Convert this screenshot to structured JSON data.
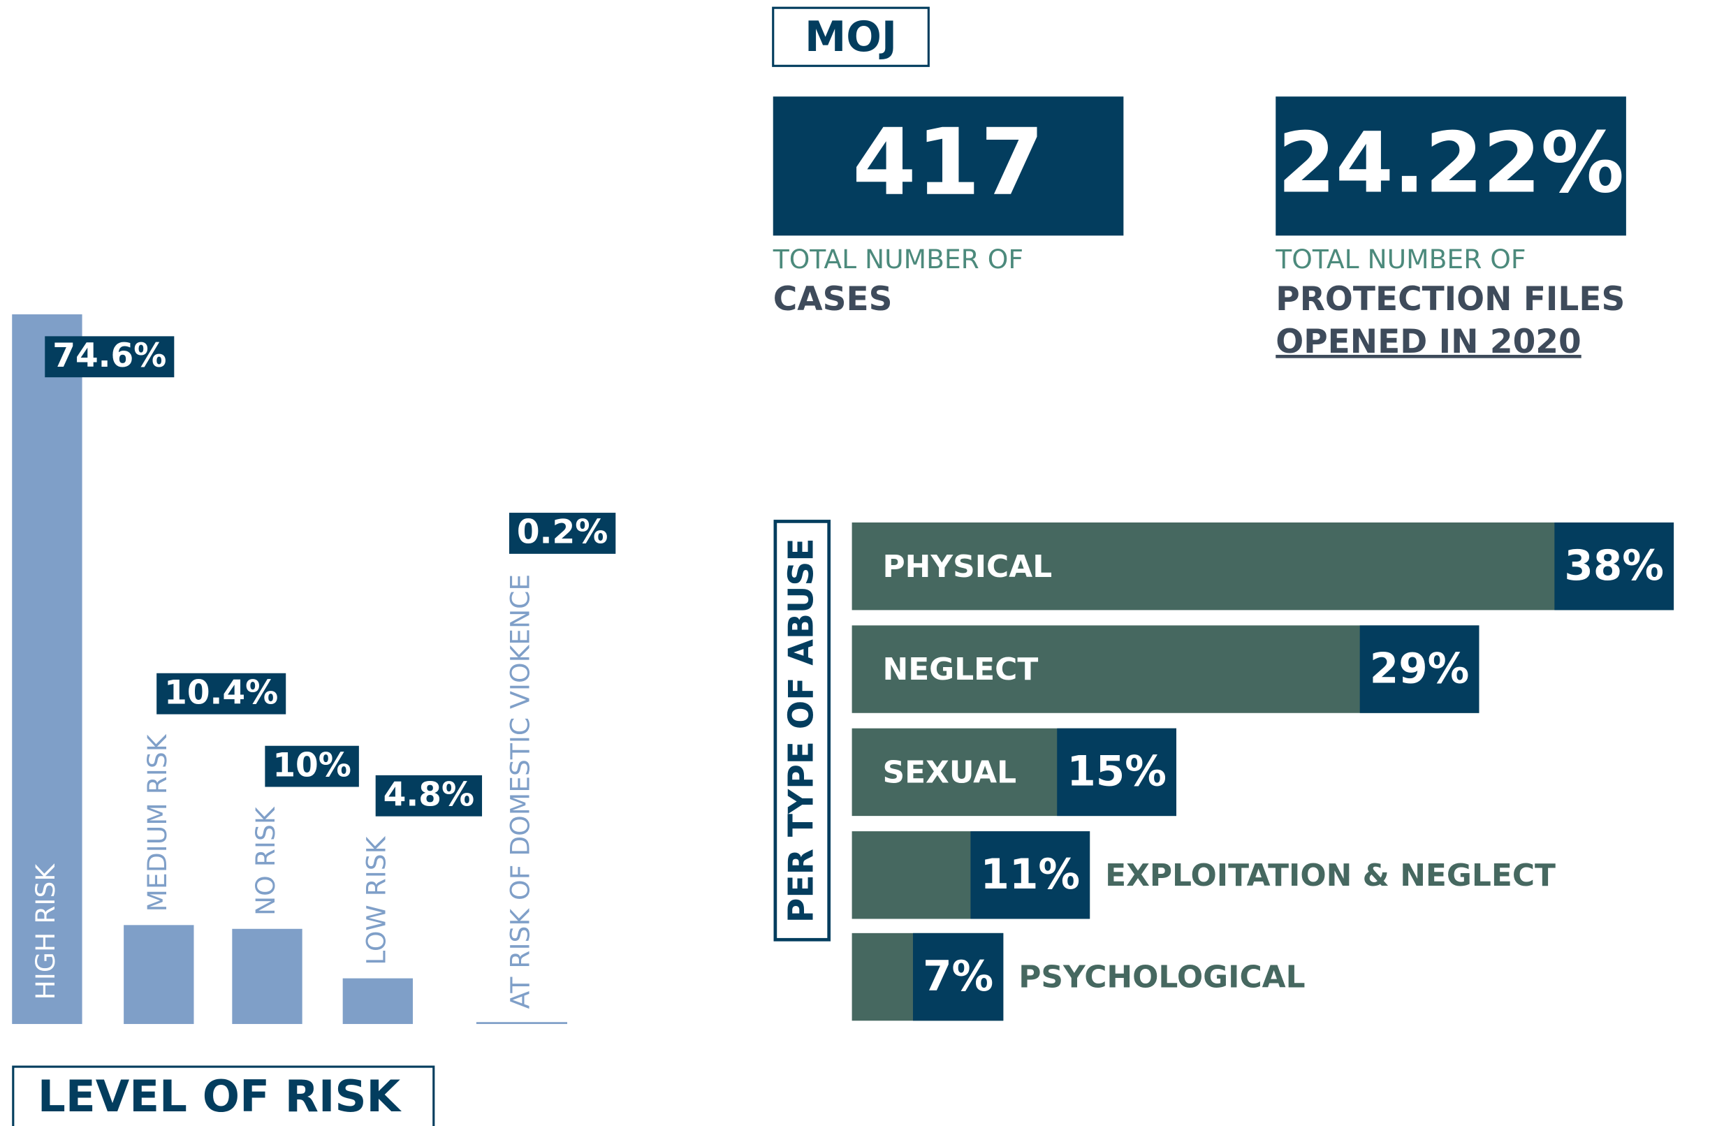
{
  "header": {
    "title": "MOJ"
  },
  "stats": [
    {
      "value": "417",
      "label": "TOTAL NUMBER OF",
      "caption_lines": [
        "CASES"
      ]
    },
    {
      "value": "24.22%",
      "label": "TOTAL NUMBER OF",
      "caption_lines": [
        "PROTECTION FILES",
        "OPENED IN 2020"
      ]
    }
  ],
  "chart_data": [
    {
      "type": "bar",
      "title": "LEVEL OF RISK",
      "categories": [
        "HIGH RISK",
        "MEDIUM RISK",
        "NO RISK",
        "LOW RISK",
        "AT RISK OF DOMESTIC VIOKENCE"
      ],
      "values": [
        74.6,
        10.4,
        10,
        4.8,
        0.2
      ],
      "value_labels": [
        "74.6%",
        "10.4%",
        "10%",
        "4.8%",
        "0.2%"
      ],
      "color": "#7f9fc8",
      "ylim": [
        0,
        80
      ]
    },
    {
      "type": "barh",
      "title": "PER TYPE OF ABUSE",
      "categories": [
        "PHYSICAL",
        "NEGLECT",
        "SEXUAL",
        "EXPLOITATION & NEGLECT",
        "PSYCHOLOGICAL"
      ],
      "values": [
        38,
        29,
        15,
        11,
        7
      ],
      "value_labels": [
        "38%",
        "29%",
        "15%",
        "11%",
        "7%"
      ],
      "color": "#466860",
      "xlim": [
        0,
        40
      ]
    }
  ]
}
